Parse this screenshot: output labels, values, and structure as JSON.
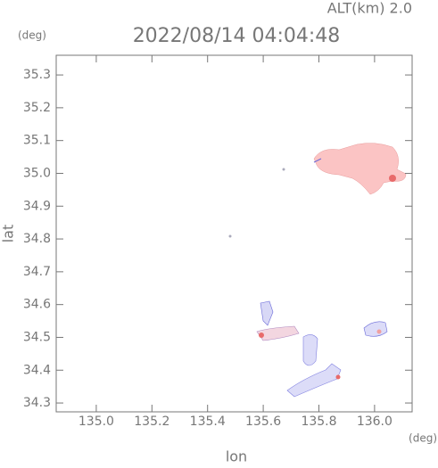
{
  "chart_data": {
    "type": "map",
    "title": "2022/08/14 04:04:48",
    "altitude_label": "ALT(km) 2.0",
    "y_unit": "(deg)",
    "x_unit": "(deg)",
    "xlabel": "lon",
    "ylabel": "lat",
    "xlim": [
      134.856,
      136.135
    ],
    "ylim": [
      34.273,
      35.36
    ],
    "xticks": [
      {
        "value": 135.0,
        "label": "135.0"
      },
      135.2,
      135.4,
      135.6,
      135.8,
      {
        "value": 136.0,
        "label": "136.0"
      }
    ],
    "yticks": [
      35.3,
      35.2,
      35.1,
      {
        "value": 35.0,
        "label": "35.0"
      },
      34.9,
      34.8,
      34.7,
      34.6,
      34.5,
      34.4,
      34.3
    ]
  }
}
